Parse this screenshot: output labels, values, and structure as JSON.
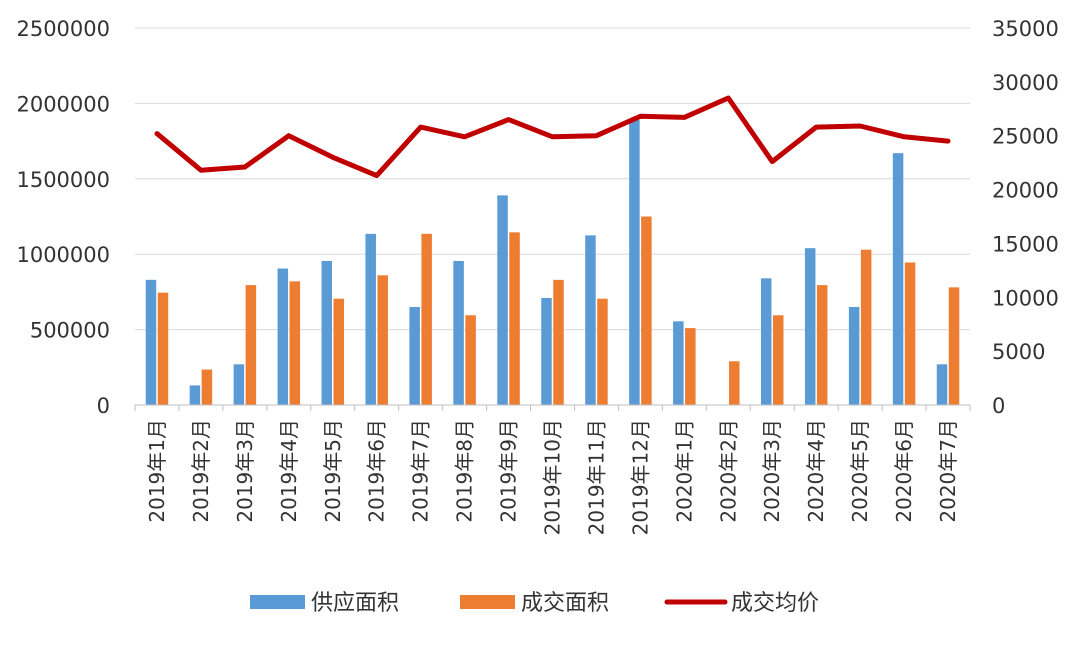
{
  "chart_data": {
    "type": "bar+line",
    "categories": [
      "2019年1月",
      "2019年2月",
      "2019年3月",
      "2019年4月",
      "2019年5月",
      "2019年6月",
      "2019年7月",
      "2019年8月",
      "2019年9月",
      "2019年10月",
      "2019年11月",
      "2019年12月",
      "2020年1月",
      "2020年2月",
      "2020年3月",
      "2020年4月",
      "2020年5月",
      "2020年6月",
      "2020年7月"
    ],
    "series": [
      {
        "name": "供应面积",
        "type": "bar",
        "axis": "left",
        "color": "#5B9BD5",
        "values": [
          830000,
          130000,
          270000,
          905000,
          955000,
          1135000,
          650000,
          955000,
          1390000,
          710000,
          1125000,
          1890000,
          555000,
          0,
          840000,
          1040000,
          650000,
          1670000,
          270000
        ]
      },
      {
        "name": "成交面积",
        "type": "bar",
        "axis": "left",
        "color": "#ED7D31",
        "values": [
          745000,
          235000,
          795000,
          820000,
          705000,
          860000,
          1135000,
          595000,
          1145000,
          830000,
          705000,
          1250000,
          510000,
          290000,
          595000,
          795000,
          1030000,
          945000,
          780000
        ]
      },
      {
        "name": "成交均价",
        "type": "line",
        "axis": "right",
        "color": "#C00000",
        "values": [
          25200,
          21800,
          22100,
          25000,
          23000,
          21300,
          25800,
          24900,
          26500,
          24900,
          25000,
          26800,
          26700,
          28500,
          22600,
          25800,
          25900,
          24900,
          24500
        ]
      }
    ],
    "left_axis": {
      "min": 0,
      "max": 2500000,
      "ticks": [
        0,
        500000,
        1000000,
        1500000,
        2000000,
        2500000
      ],
      "tick_labels": [
        "0",
        "500000",
        "1000000",
        "1500000",
        "2000000",
        "2500000"
      ]
    },
    "right_axis": {
      "min": 0,
      "max": 35000,
      "ticks": [
        0,
        5000,
        10000,
        15000,
        20000,
        25000,
        30000,
        35000
      ],
      "tick_labels": [
        "0",
        "5000",
        "10000",
        "15000",
        "20000",
        "25000",
        "30000",
        "35000"
      ]
    },
    "grid": true,
    "legend_position": "bottom",
    "title": "",
    "xlabel": "",
    "ylabel": ""
  }
}
